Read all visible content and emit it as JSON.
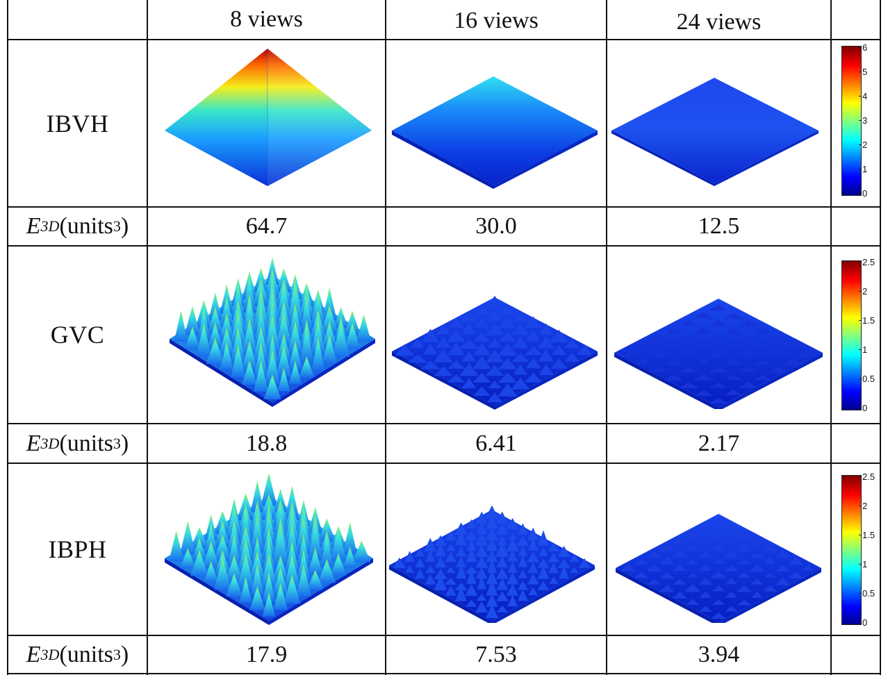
{
  "header": {
    "col1": "8 views",
    "col2": "16 views",
    "col3": "24 views"
  },
  "metric": {
    "symbol": "E",
    "sub": "3D",
    "unit": "(units",
    "unit_sup": "3",
    "unit_close": ")"
  },
  "rows": [
    {
      "method": "IBVH",
      "errors": [
        "64.7",
        "30.0",
        "12.5"
      ],
      "colorbar_ticks": [
        "6",
        "5",
        "4",
        "3",
        "2",
        "1",
        "0"
      ]
    },
    {
      "method": "GVC",
      "errors": [
        "18.8",
        "6.41",
        "2.17"
      ],
      "colorbar_ticks": [
        "2.5",
        "2",
        "1.5",
        "1",
        "0.5",
        "0"
      ]
    },
    {
      "method": "IBPH",
      "errors": [
        "17.9",
        "7.53",
        "3.94"
      ],
      "colorbar_ticks": [
        "2.5",
        "2",
        "1.5",
        "1",
        "0.5",
        "0"
      ]
    }
  ],
  "colormap": "jet",
  "colors": {
    "jet_low": "#00008f",
    "jet_mid": "#00ffff",
    "jet_high": "#800000"
  }
}
